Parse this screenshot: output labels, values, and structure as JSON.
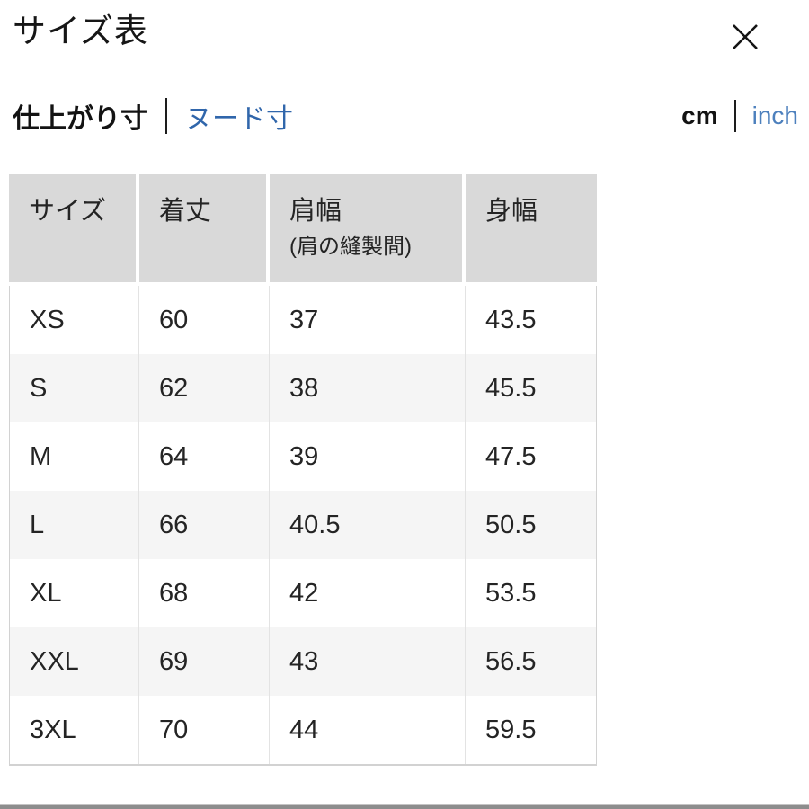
{
  "modal": {
    "title": "サイズ表"
  },
  "tabs": {
    "fit_label": "仕上がり寸",
    "nude_label": "ヌード寸",
    "cm_label": "cm",
    "inch_label": "inch"
  },
  "table": {
    "headers": [
      {
        "line1": "サイズ",
        "line2": ""
      },
      {
        "line1": "着丈",
        "line2": ""
      },
      {
        "line1": "肩幅",
        "line2": "(肩の縫製間)"
      },
      {
        "line1": "身幅",
        "line2": ""
      }
    ],
    "rows": [
      [
        "XS",
        "60",
        "37",
        "43.5"
      ],
      [
        "S",
        "62",
        "38",
        "45.5"
      ],
      [
        "M",
        "64",
        "39",
        "47.5"
      ],
      [
        "L",
        "66",
        "40.5",
        "50.5"
      ],
      [
        "XL",
        "68",
        "42",
        "53.5"
      ],
      [
        "XXL",
        "69",
        "43",
        "56.5"
      ],
      [
        "3XL",
        "70",
        "44",
        "59.5"
      ]
    ]
  },
  "colors": {
    "header_bg": "#d9d9d9",
    "row_alt_bg": "#f5f5f5",
    "link_blue": "#3066ab",
    "link_blue_light": "#4d80bd",
    "text": "#1c1c1c",
    "table_border": "#d2d2d2",
    "cell_divider": "#e3e3e3",
    "bottom_bar": "#8d8d8d"
  }
}
